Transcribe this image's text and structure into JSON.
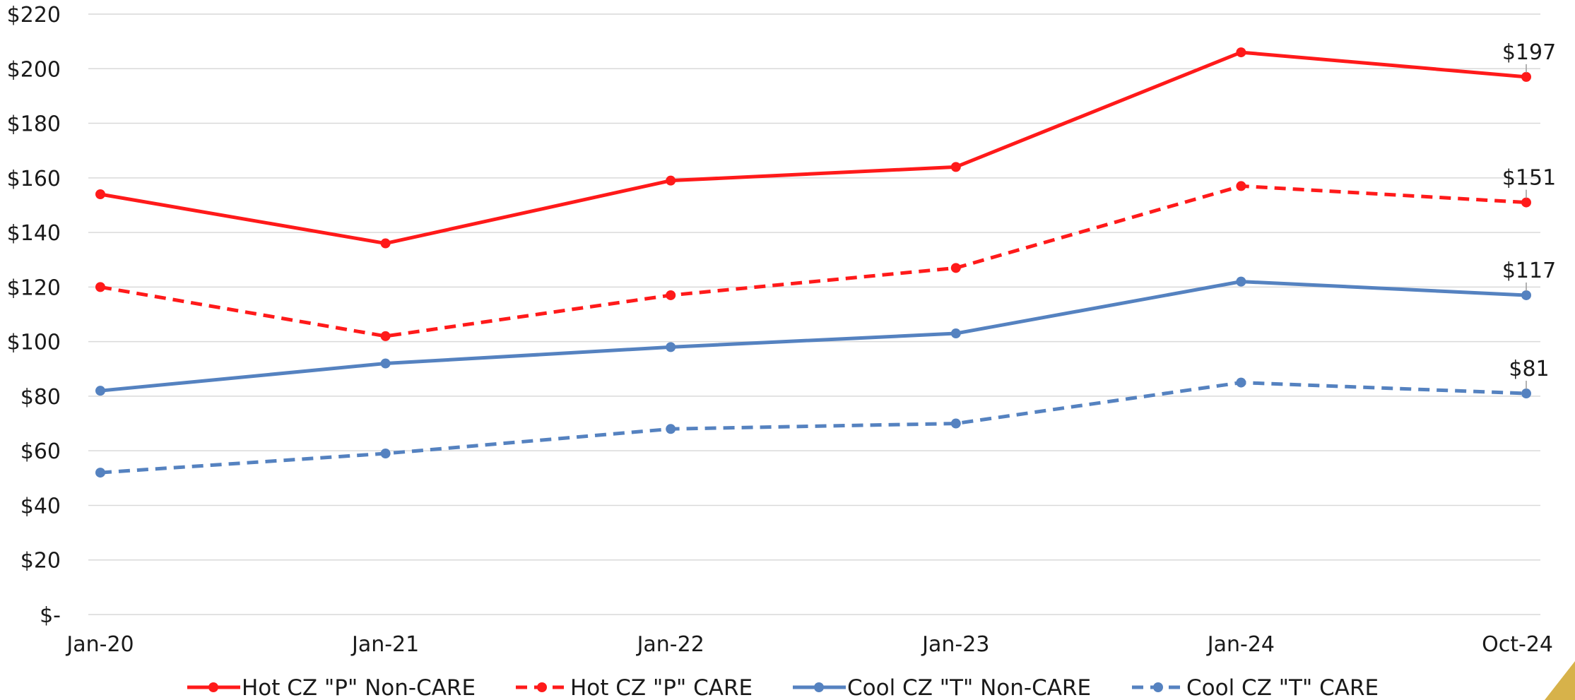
{
  "chart_data": {
    "type": "line",
    "categories": [
      "Jan-20",
      "Jan-21",
      "Jan-22",
      "Jan-23",
      "Jan-24",
      "Oct-24"
    ],
    "ylim": [
      0,
      220
    ],
    "ytick_values": [
      0,
      20,
      40,
      60,
      80,
      100,
      120,
      140,
      160,
      180,
      200,
      220
    ],
    "ytick_labels": [
      "$-",
      "$20",
      "$40",
      "$60",
      "$80",
      "$100",
      "$120",
      "$140",
      "$160",
      "$180",
      "$200",
      "$220"
    ],
    "grid": true,
    "legend_position": "bottom",
    "series": [
      {
        "name": "Hot CZ \"P\" Non-CARE",
        "values": [
          154,
          136,
          159,
          164,
          206,
          197
        ],
        "color": "#ff1a1a",
        "dashed": false,
        "end_label": "$197"
      },
      {
        "name": "Hot CZ \"P\" CARE",
        "values": [
          120,
          102,
          117,
          127,
          157,
          151
        ],
        "color": "#ff1a1a",
        "dashed": true,
        "end_label": "$151"
      },
      {
        "name": "Cool CZ \"T\" Non-CARE",
        "values": [
          82,
          92,
          98,
          103,
          122,
          117
        ],
        "color": "#5582c0",
        "dashed": false,
        "end_label": "$117"
      },
      {
        "name": "Cool CZ \"T\" CARE",
        "values": [
          52,
          59,
          68,
          70,
          85,
          81
        ],
        "color": "#5582c0",
        "dashed": true,
        "end_label": "$81"
      }
    ]
  }
}
